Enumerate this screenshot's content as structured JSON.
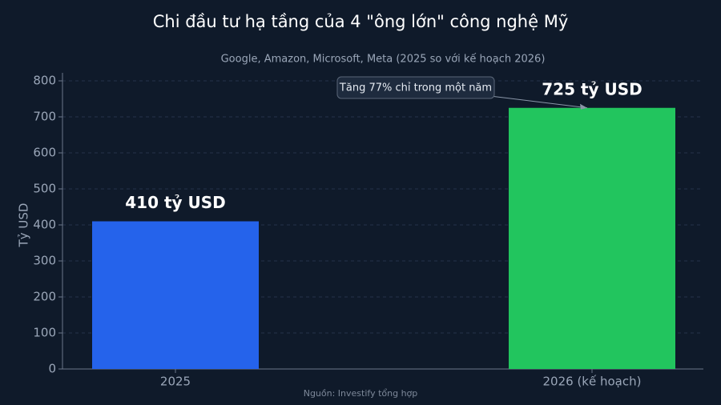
{
  "chart_data": {
    "type": "bar",
    "title": "Chi đầu tư hạ tầng của 4 \"ông lớn\" công nghệ Mỹ",
    "subtitle": "Google, Amazon, Microsoft, Meta (2025 so với kế hoạch 2026)",
    "y_label": "Tỷ USD",
    "categories": [
      "2025",
      "2026 (kế hoạch)"
    ],
    "values": [
      410,
      725
    ],
    "value_labels": [
      "410 tỷ USD",
      "725 tỷ USD"
    ],
    "colors": [
      "#2563eb",
      "#22c55e"
    ],
    "ylim": [
      0,
      800
    ],
    "yticks": [
      0,
      100,
      200,
      300,
      400,
      500,
      600,
      700,
      800
    ],
    "grid": true,
    "annotation": "Tăng 77% chỉ trong một năm",
    "source": "Nguồn: Investify tổng hợp"
  }
}
